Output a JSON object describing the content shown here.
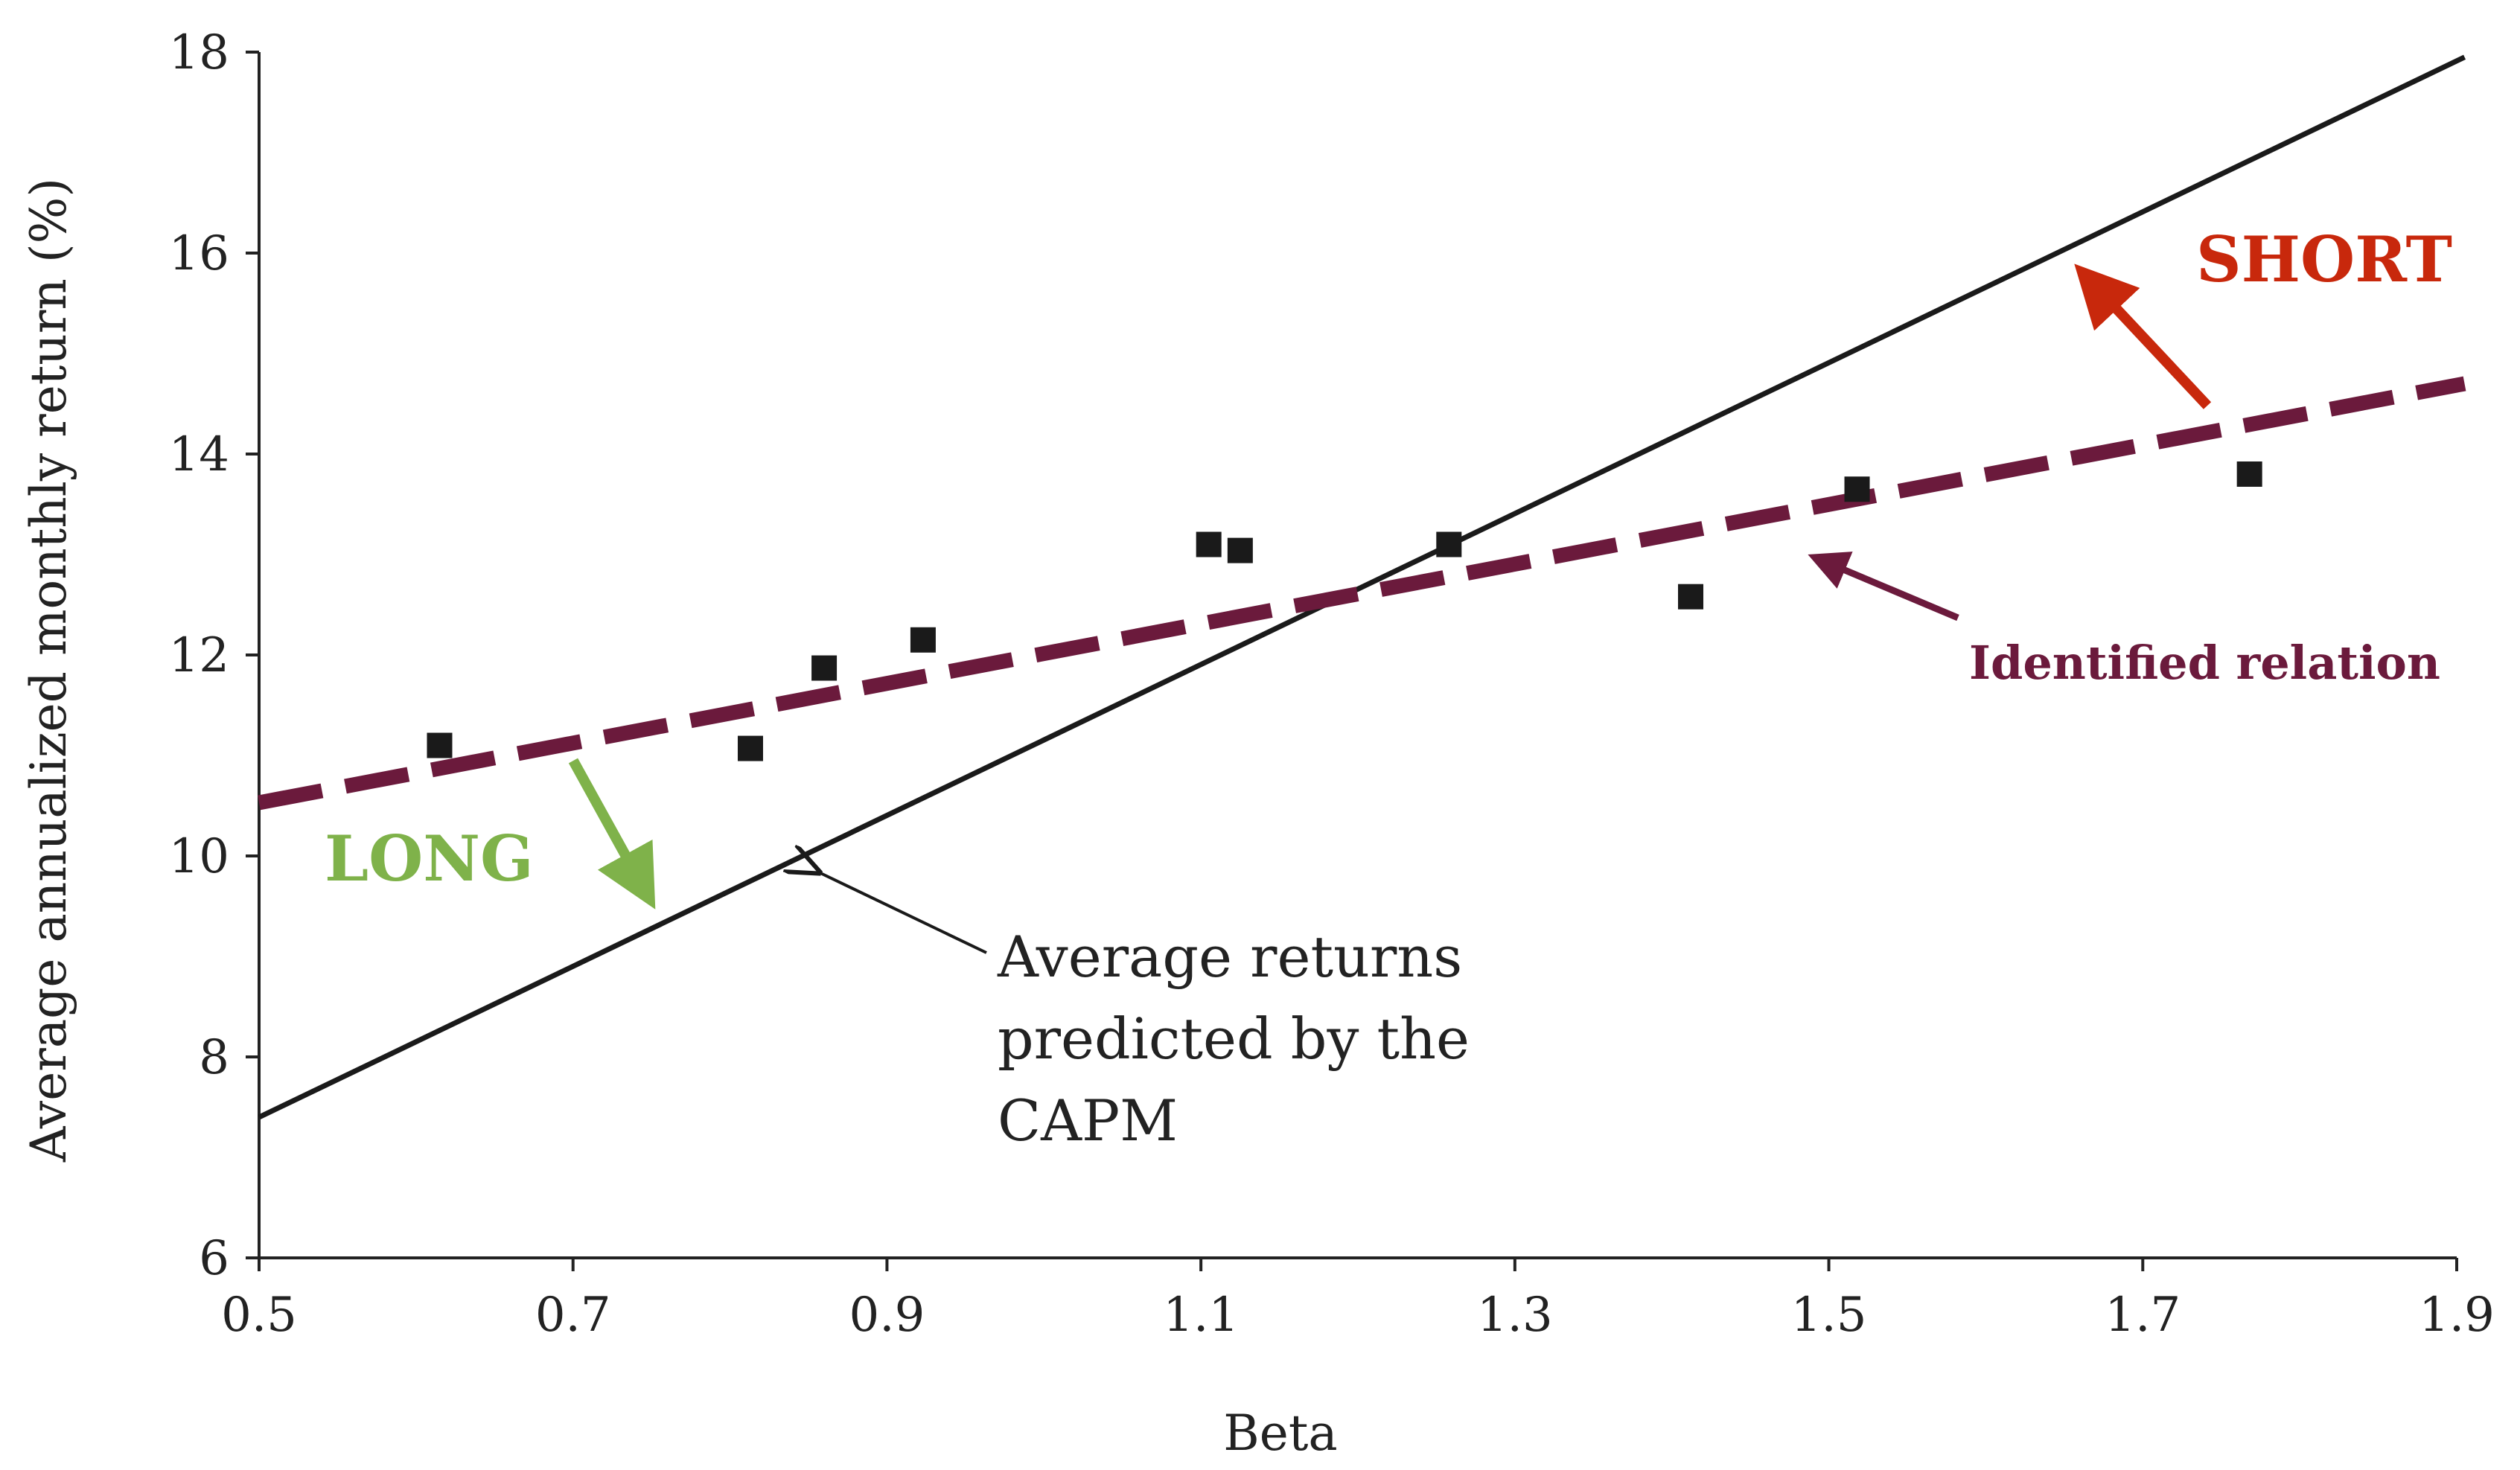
{
  "chart_data": {
    "type": "scatter",
    "title": "",
    "xlabel": "Beta",
    "ylabel": "Average annualized monthly return (%)",
    "xlim": [
      0.5,
      1.9
    ],
    "ylim": [
      6,
      18
    ],
    "x_ticks": [
      "0.5",
      "0.7",
      "0.9",
      "1.1",
      "1.3",
      "1.5",
      "1.7",
      "1.9"
    ],
    "y_ticks": [
      "6",
      "8",
      "10",
      "12",
      "14",
      "16",
      "18"
    ],
    "grid": false,
    "points": [
      {
        "x": 0.615,
        "y": 11.1
      },
      {
        "x": 0.813,
        "y": 11.07
      },
      {
        "x": 0.86,
        "y": 11.87
      },
      {
        "x": 0.923,
        "y": 12.15
      },
      {
        "x": 1.105,
        "y": 13.1
      },
      {
        "x": 1.125,
        "y": 13.04
      },
      {
        "x": 1.258,
        "y": 13.1
      },
      {
        "x": 1.412,
        "y": 12.58
      },
      {
        "x": 1.518,
        "y": 13.65
      },
      {
        "x": 1.768,
        "y": 13.8
      }
    ],
    "lines": [
      {
        "name": "capm",
        "style": "solid",
        "color": "#1a1a1a",
        "from": {
          "x": 0.5,
          "y": 7.4
        },
        "to": {
          "x": 1.905,
          "y": 17.95
        }
      },
      {
        "name": "identified",
        "style": "dashed",
        "color": "#6b1a3c",
        "from": {
          "x": 0.5,
          "y": 10.53
        },
        "to": {
          "x": 1.905,
          "y": 14.7
        }
      }
    ],
    "annotations": {
      "short": {
        "text": "SHORT",
        "color": "#c8280c"
      },
      "long": {
        "text": "LONG",
        "color": "#7fb24a"
      },
      "identified": {
        "text": "Identified relation",
        "color": "#6b1a3c"
      },
      "capm_lines": [
        "Average returns",
        "predicted by the",
        "CAPM"
      ]
    }
  }
}
